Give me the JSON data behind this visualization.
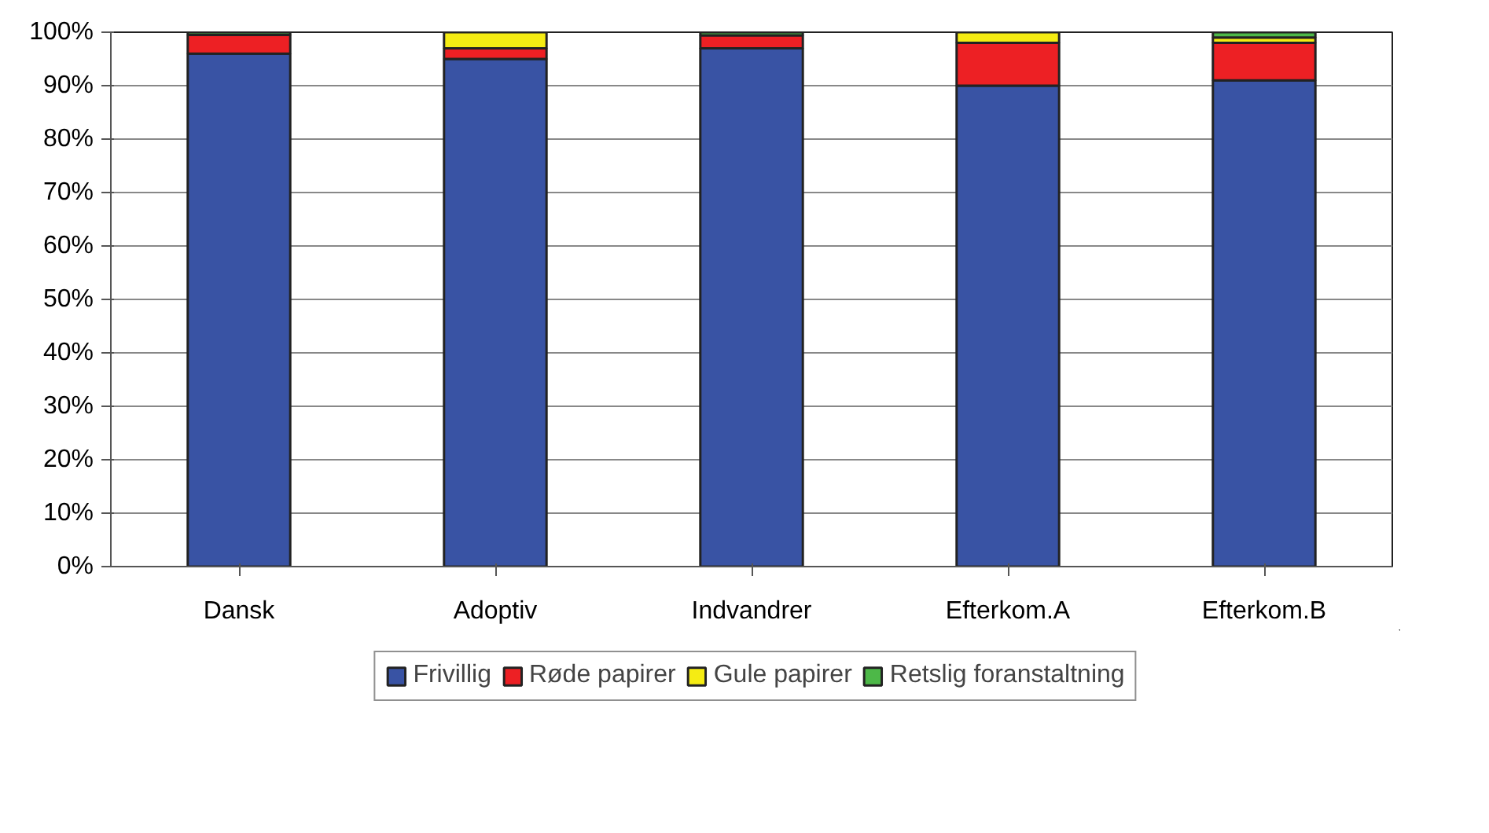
{
  "chart_data": {
    "type": "bar",
    "stacked": true,
    "categories": [
      "Dansk",
      "Adoptiv",
      "Indvandrer",
      "Efterkom.A",
      "Efterkom.B"
    ],
    "series": [
      {
        "name": "Frivillig",
        "color": "#3953a4",
        "values": [
          96,
          95,
          97,
          90,
          91
        ]
      },
      {
        "name": "Røde papirer",
        "color": "#ed2024",
        "values": [
          3.5,
          2,
          2.4,
          8,
          7
        ]
      },
      {
        "name": "Gule papirer",
        "color": "#f5ec13",
        "values": [
          0,
          3,
          0,
          2,
          1
        ]
      },
      {
        "name": "Retslig foranstaltning",
        "color": "#4db848",
        "values": [
          0.5,
          0,
          0.6,
          0,
          1
        ]
      }
    ],
    "ylim": [
      0,
      100
    ],
    "yticks": [
      {
        "value": 0,
        "label": "0%"
      },
      {
        "value": 10,
        "label": "10%"
      },
      {
        "value": 20,
        "label": "20%"
      },
      {
        "value": 30,
        "label": "30%"
      },
      {
        "value": 40,
        "label": "40%"
      },
      {
        "value": 50,
        "label": "50%"
      },
      {
        "value": 60,
        "label": "60%"
      },
      {
        "value": 70,
        "label": "70%"
      },
      {
        "value": 80,
        "label": "80%"
      },
      {
        "value": 90,
        "label": "90%"
      },
      {
        "value": 100,
        "label": "100%"
      }
    ],
    "grid": "y",
    "legend": "bottom"
  }
}
